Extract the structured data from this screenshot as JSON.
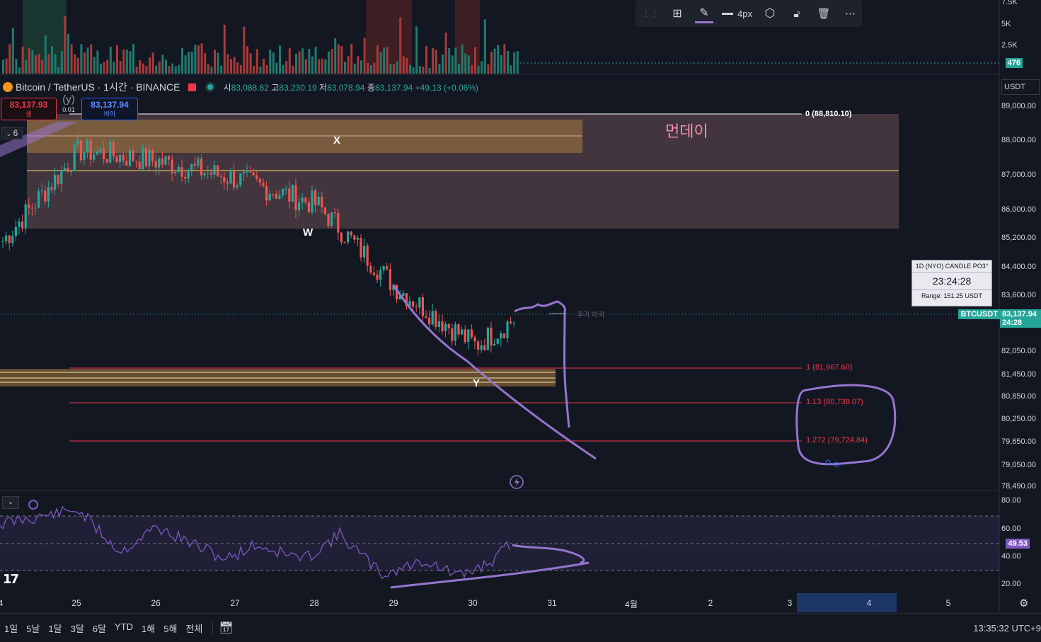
{
  "header": {
    "pair": "Bitcoin / TetherUS · 1시간 · BINANCE",
    "ohlc": {
      "open_label": "시",
      "open": "83,088.82",
      "high_label": "고",
      "high": "83,230.19",
      "low_label": "저",
      "low": "83,078.94",
      "close_label": "종",
      "close": "83,137.94",
      "change": "+49.13 (+0.06%)"
    }
  },
  "trade": {
    "sell_price": "83,137.93",
    "sell_label": "셀",
    "spread_top": "(y)",
    "spread": "0.01",
    "buy_price": "83,137.94",
    "buy_label": "바이"
  },
  "collapse": {
    "count": "6"
  },
  "toolbar": {
    "width_label": "4px",
    "icons": [
      "drag-handle-icon",
      "add-object-icon",
      "pencil-icon",
      "line-style-icon",
      "settings-hex-icon",
      "lock-icon",
      "trash-icon",
      "more-icon"
    ]
  },
  "annotations": {
    "zone_label": "먼데이",
    "wave_x": "X",
    "wave_w": "W",
    "wave_y": "Y",
    "fib_0": "0 (88,810.10)",
    "fib_1": "1 (81,667.60)",
    "fib_113": "1.13 (80,739.07)",
    "fib_1272": "1.272 (79,724.84)",
    "scribble_text": "추가 하락"
  },
  "info_box": {
    "title": "1D (NYO) CANDLE PO3°",
    "time": "23:24:28",
    "range": "Range: 151.25 USDT"
  },
  "price_axis": {
    "currency": "USDT",
    "labels": [
      "89,000.00",
      "88,000.00",
      "87,000.00",
      "86,000.00",
      "85,200.00",
      "84,400.00",
      "83,600.00",
      "82,050.00",
      "81,450.00",
      "80,850.00",
      "80,250.00",
      "79,650.00",
      "79,050.00",
      "78,490.00"
    ],
    "symbol_tag": "BTCUSDT",
    "last_price": "83,137.94",
    "countdown": "24:28"
  },
  "volume_axis": {
    "labels": [
      "7.5K",
      "5K",
      "2.5K"
    ],
    "current": "476"
  },
  "rsi_axis": {
    "labels": [
      "80.00",
      "60.00",
      "40.00",
      "20.00"
    ],
    "current": "49.53"
  },
  "time_axis": {
    "labels": [
      "4",
      "25",
      "26",
      "27",
      "28",
      "29",
      "30",
      "31",
      "4월",
      "2",
      "3",
      "4",
      "5"
    ]
  },
  "bottom_bar": {
    "timeframes": [
      "1일",
      "5날",
      "1달",
      "3달",
      "6달",
      "YTD",
      "1해",
      "5해",
      "전체"
    ],
    "clock": "13:35:32 UTC+9"
  },
  "colors": {
    "up": "#26a69a",
    "down": "#ef5350",
    "accent_purple": "#9575cd",
    "zone_fill": "#8a5a5a",
    "fib_red": "#f23645",
    "background": "#131722"
  },
  "chart_data": {
    "type": "candlestick",
    "price_range": [
      78490,
      89000
    ],
    "closes_by_day": [
      {
        "date": "24",
        "close": 85200
      },
      {
        "date": "25",
        "close": 87800
      },
      {
        "date": "26",
        "close": 87500
      },
      {
        "date": "27",
        "close": 87000
      },
      {
        "date": "28",
        "close": 86300
      },
      {
        "date": "29",
        "close": 84000
      },
      {
        "date": "30",
        "close": 82400
      },
      {
        "date": "30.5",
        "close": 83137.94
      }
    ],
    "rsi_last": 49.53
  }
}
